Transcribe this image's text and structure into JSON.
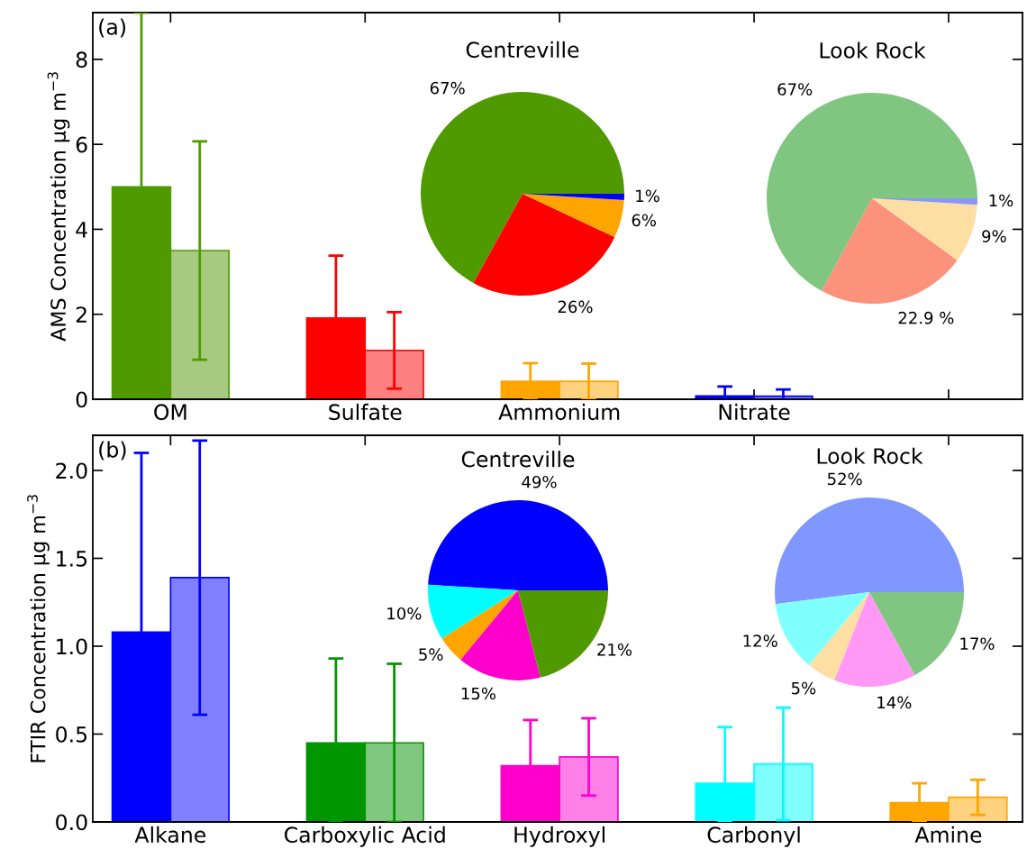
{
  "chart_data": [
    {
      "type": "bar",
      "ylabel": "AMS Concentration μg m$^{−3}$",
      "categories": [
        "OM",
        "Sulfate",
        "Ammonium",
        "Nitrate",
        null
      ],
      "ylim": [
        0,
        9.1
      ],
      "yticks": [
        0,
        2,
        4,
        6,
        8
      ],
      "annotations": [
        "(a)"
      ],
      "series": [
        {
          "colors": [
            "#4f9a00",
            "#ff0000",
            "#ffa500",
            "#0000ff",
            null
          ],
          "values": [
            5.0,
            1.91,
            0.42,
            0.08,
            null
          ],
          "errors": [
            4.1,
            1.47,
            0.43,
            0.22,
            null
          ]
        },
        {
          "colors": [
            "#a6cb80",
            "#ff8080",
            "#ffd280",
            "#8080ff",
            null
          ],
          "values": [
            3.5,
            1.15,
            0.42,
            0.07,
            null
          ],
          "errors": [
            2.57,
            0.9,
            0.42,
            0.16,
            null
          ]
        }
      ]
    },
    {
      "type": "pie",
      "title": "Centreville",
      "categories": [
        null,
        null,
        null,
        null
      ],
      "values": [
        67,
        26,
        6,
        1
      ],
      "colors": [
        "#4f9a00",
        "#ff0000",
        "#ffa500",
        "#0000ff"
      ],
      "value_labels": [
        "67%",
        "26%",
        "6%",
        "1%"
      ]
    },
    {
      "type": "pie",
      "title": "Look Rock",
      "categories": [
        null,
        null,
        null,
        null
      ],
      "values": [
        67,
        22.9,
        9,
        1
      ],
      "colors": [
        "#80c680",
        "#fc917c",
        "#fddea3",
        "#8b96f7"
      ],
      "value_labels": [
        "67%",
        "22.9 %",
        "9%",
        "1%"
      ]
    },
    {
      "type": "bar",
      "ylabel": "FTIR Concentration μg m$^{−3}$",
      "categories": [
        "Alkane",
        "Carboxylic Acid",
        "Hydroxyl",
        "Carbonyl",
        "Amine"
      ],
      "ylim": [
        0,
        2.2
      ],
      "yticks": [
        {
          "value": 0,
          "label": "0.0"
        },
        {
          "value": 0.5,
          "label": "0.5"
        },
        {
          "value": 1,
          "label": "1.0"
        },
        {
          "value": 1.5,
          "label": "1.5"
        },
        {
          "value": 2,
          "label": "2.0"
        }
      ],
      "annotations": [
        "(b)"
      ],
      "series": [
        {
          "colors": [
            "#0000ff",
            "#009600",
            "#ff00cc",
            "#00ffff",
            "#ffa500"
          ],
          "values": [
            1.08,
            0.45,
            0.32,
            0.22,
            0.11
          ],
          "errors": [
            1.02,
            [
              0,
              0.93
            ],
            0.26,
            [
              0,
              0.54
            ],
            0.11
          ]
        },
        {
          "colors": [
            "#8080ff",
            "#80c880",
            "#ff80e6",
            "#80ffff",
            "#ffd280"
          ],
          "values": [
            1.39,
            0.45,
            0.37,
            0.33,
            0.14
          ],
          "errors": [
            0.78,
            0.45,
            0.22,
            0.32,
            0.1
          ]
        }
      ]
    },
    {
      "type": "pie",
      "title": "Centreville",
      "categories": [
        null,
        null,
        null,
        null,
        null
      ],
      "values": [
        49,
        10,
        5,
        15,
        21
      ],
      "colors": [
        "#0000ff",
        "#00ffff",
        "#ffa500",
        "#ff00cc",
        "#4f9a00"
      ],
      "value_labels": [
        "49%",
        "10%",
        "5%",
        "15%",
        "21%"
      ]
    },
    {
      "type": "pie",
      "title": "Look Rock",
      "categories": [
        null,
        null,
        null,
        null,
        null
      ],
      "values": [
        52,
        12,
        5,
        14,
        17
      ],
      "colors": [
        "#8097ff",
        "#80ffff",
        "#fddea3",
        "#ff99f5",
        "#80c680"
      ],
      "value_labels": [
        "52%",
        "12%",
        "5%",
        "14%",
        "17%"
      ]
    }
  ]
}
